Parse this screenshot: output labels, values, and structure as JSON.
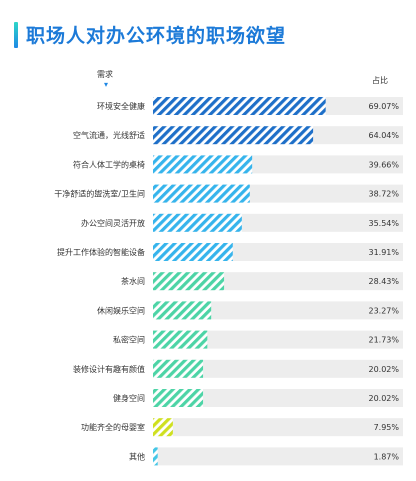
{
  "title": "职场人对办公环境的职场欲望",
  "header": {
    "need_label": "需求",
    "share_label": "占比"
  },
  "colors": {
    "title": "#1c7ad8",
    "track": "#ededed",
    "blue_stripe": "#1e6fc8",
    "lightblue_stripe": "#36b4ec",
    "green_stripe": "#4dd4a6",
    "yellow_stripe": "#cfe01f",
    "cyan_stripe": "#43c6e6"
  },
  "chart_data": {
    "type": "bar",
    "orientation": "horizontal",
    "categories": [
      "环境安全健康",
      "空气流通，光线舒适",
      "符合人体工学的桌椅",
      "干净舒适的盥洗室/卫生间",
      "办公空间灵活开放",
      "提升工作体验的智能设备",
      "茶水间",
      "休闲娱乐空间",
      "私密空间",
      "装修设计有趣有颜值",
      "健身空间",
      "功能齐全的母婴室",
      "其他"
    ],
    "values": [
      69.07,
      64.04,
      39.66,
      38.72,
      35.54,
      31.91,
      28.43,
      23.27,
      21.73,
      20.02,
      20.02,
      7.95,
      1.87
    ],
    "value_labels": [
      "69.07%",
      "64.04%",
      "39.66%",
      "38.72%",
      "35.54%",
      "31.91%",
      "28.43%",
      "23.27%",
      "21.73%",
      "20.02%",
      "20.02%",
      "7.95%",
      "1.87%"
    ],
    "bar_colors": [
      "blue",
      "blue",
      "lightblue",
      "lightblue",
      "lightblue",
      "lightblue",
      "green",
      "green",
      "green",
      "green",
      "green",
      "yellow",
      "cyan"
    ],
    "xlim": [
      0,
      100
    ],
    "grid": false,
    "legend": "none"
  }
}
